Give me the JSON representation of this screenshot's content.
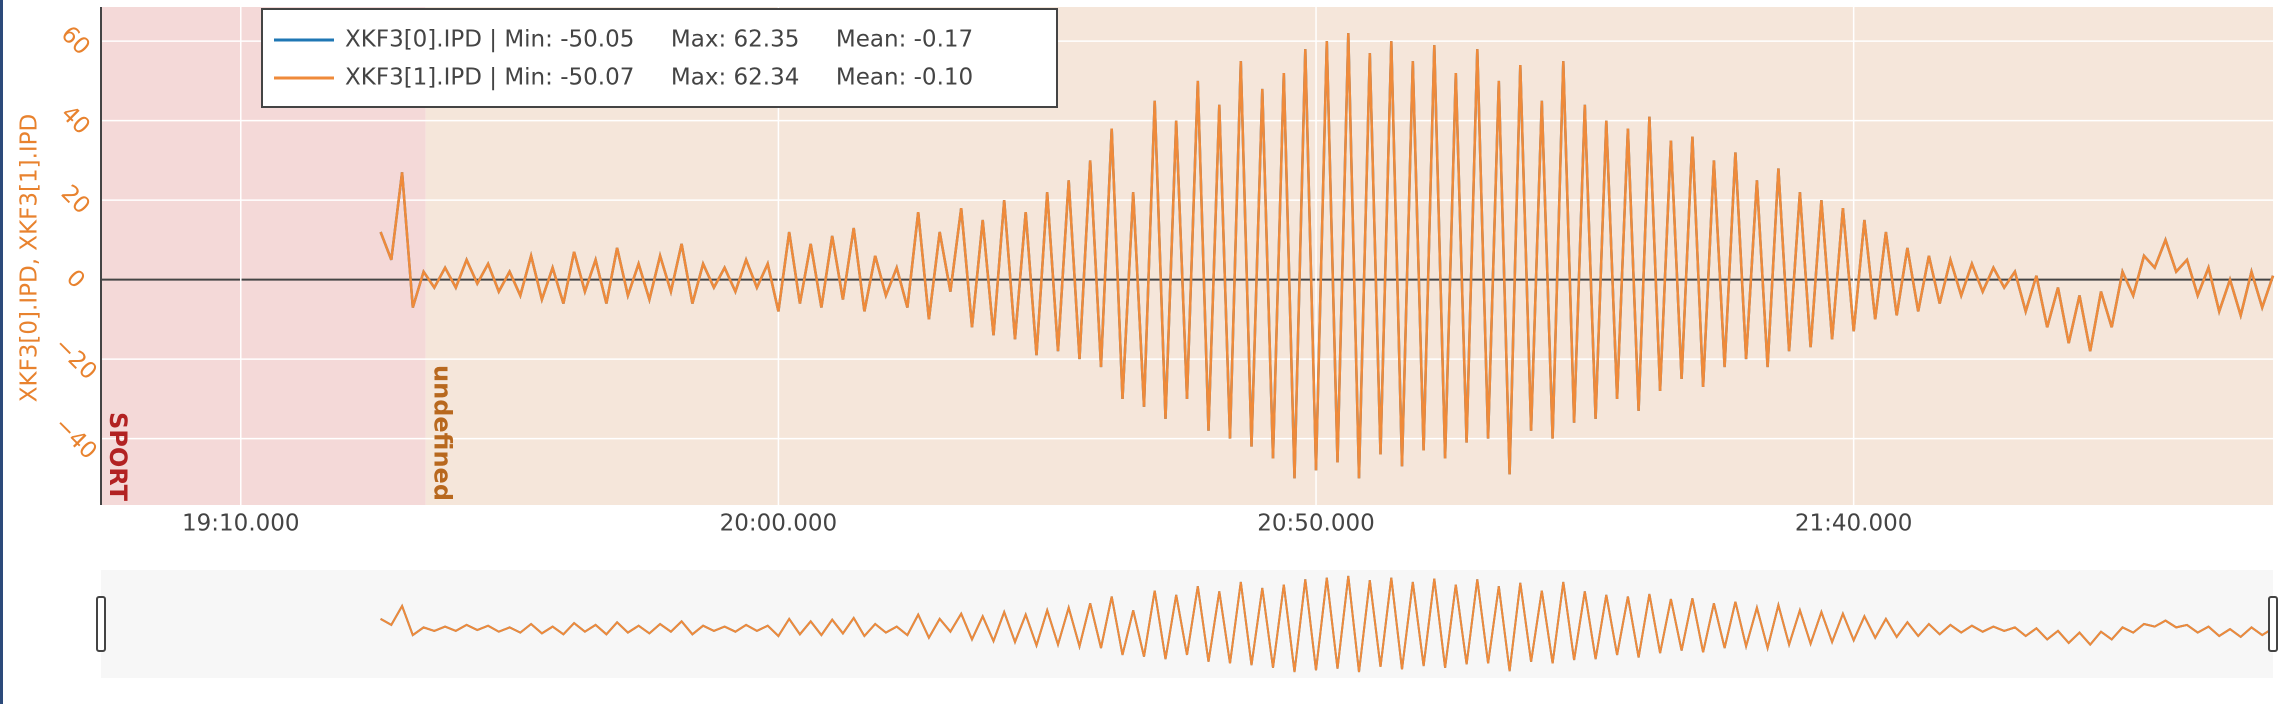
{
  "chart_data": {
    "type": "line",
    "y_label": "XKF3[0].IPD, XKF3[1].IPD",
    "xlim": [
      1137,
      1339
    ],
    "ylim": [
      -56.7,
      68.6
    ],
    "xticks": [
      {
        "value": 1150,
        "label": "19:10.000"
      },
      {
        "value": 1200,
        "label": "20:00.000"
      },
      {
        "value": 1250,
        "label": "20:50.000"
      },
      {
        "value": 1300,
        "label": "21:40.000"
      }
    ],
    "yticks": [
      {
        "value": -40,
        "label": "−40"
      },
      {
        "value": -20,
        "label": "−20"
      },
      0,
      20,
      40,
      60
    ],
    "grid": true,
    "regions": [
      {
        "label": "SPORT",
        "start": 1137,
        "end": 1167.2,
        "color": "#f4d9d8",
        "label_color": "#b22222"
      },
      {
        "label": "undefined",
        "start": 1167.2,
        "end": 1339,
        "color": "#f5e6da",
        "label_color": "#b8681e"
      }
    ],
    "x": [
      1163,
      1164,
      1165,
      1166,
      1167,
      1168,
      1169,
      1170,
      1171,
      1172,
      1173,
      1174,
      1175,
      1176,
      1177,
      1178,
      1179,
      1180,
      1181,
      1182,
      1183,
      1184,
      1185,
      1186,
      1187,
      1188,
      1189,
      1190,
      1191,
      1192,
      1193,
      1194,
      1195,
      1196,
      1197,
      1198,
      1199,
      1200,
      1201,
      1202,
      1203,
      1204,
      1205,
      1206,
      1207,
      1208,
      1209,
      1210,
      1211,
      1212,
      1213,
      1214,
      1215,
      1216,
      1217,
      1218,
      1219,
      1220,
      1221,
      1222,
      1223,
      1224,
      1225,
      1226,
      1227,
      1228,
      1229,
      1230,
      1231,
      1232,
      1233,
      1234,
      1235,
      1236,
      1237,
      1238,
      1239,
      1240,
      1241,
      1242,
      1243,
      1244,
      1245,
      1246,
      1247,
      1248,
      1249,
      1250,
      1251,
      1252,
      1253,
      1254,
      1255,
      1256,
      1257,
      1258,
      1259,
      1260,
      1261,
      1262,
      1263,
      1264,
      1265,
      1266,
      1267,
      1268,
      1269,
      1270,
      1271,
      1272,
      1273,
      1274,
      1275,
      1276,
      1277,
      1278,
      1279,
      1280,
      1281,
      1282,
      1283,
      1284,
      1285,
      1286,
      1287,
      1288,
      1289,
      1290,
      1291,
      1292,
      1293,
      1294,
      1295,
      1296,
      1297,
      1298,
      1299,
      1300,
      1301,
      1302,
      1303,
      1304,
      1305,
      1306,
      1307,
      1308,
      1309,
      1310,
      1311,
      1312,
      1313,
      1314,
      1315,
      1316,
      1317,
      1318,
      1319,
      1320,
      1321,
      1322,
      1323,
      1324,
      1325,
      1326,
      1327,
      1328,
      1329,
      1330,
      1331,
      1332,
      1333,
      1334,
      1335,
      1336,
      1337,
      1338,
      1339
    ],
    "series": [
      {
        "name": "XKF3[0].IPD | Min: -50.05     Max: 62.35     Mean: -0.17",
        "color": "#1f77b4",
        "values": [
          12,
          5,
          27,
          -7,
          2,
          -2,
          3,
          -2,
          5,
          -1,
          4,
          -3,
          2,
          -4,
          6,
          -5,
          3,
          -6,
          7,
          -3,
          5,
          -6,
          8,
          -4,
          4,
          -5,
          6,
          -3,
          9,
          -6,
          4,
          -2,
          3,
          -3,
          5,
          -2,
          4,
          -8,
          12,
          -6,
          9,
          -7,
          11,
          -5,
          13,
          -8,
          6,
          -4,
          3,
          -7,
          17,
          -10,
          12,
          -3,
          18,
          -12,
          15,
          -14,
          20,
          -15,
          17,
          -19,
          22,
          -18,
          25,
          -20,
          30,
          -22,
          38,
          -30,
          22,
          -32,
          45,
          -35,
          40,
          -30,
          50,
          -38,
          44,
          -40,
          55,
          -42,
          48,
          -45,
          52,
          -50,
          58,
          -48,
          60,
          -46,
          62,
          -50,
          57,
          -44,
          60,
          -47,
          55,
          -43,
          59,
          -45,
          52,
          -41,
          58,
          -40,
          50,
          -49,
          54,
          -38,
          45,
          -40,
          55,
          -36,
          44,
          -35,
          40,
          -30,
          38,
          -33,
          41,
          -28,
          35,
          -25,
          36,
          -27,
          30,
          -22,
          32,
          -20,
          25,
          -22,
          28,
          -18,
          22,
          -17,
          20,
          -15,
          18,
          -13,
          15,
          -10,
          12,
          -9,
          8,
          -8,
          6,
          -6,
          5,
          -4,
          4,
          -3,
          3,
          -2,
          2,
          -8,
          1,
          -12,
          -2,
          -16,
          -4,
          -18,
          -3,
          -12,
          2,
          -4,
          6,
          3,
          10,
          2,
          5,
          -4,
          3,
          -8,
          0,
          -9,
          2,
          -7,
          1
        ]
      },
      {
        "name": "XKF3[1].IPD | Min: -50.07     Max: 62.34     Mean: -0.10",
        "color": "#ef8a3a",
        "values": [
          12,
          5,
          27,
          -7,
          2,
          -2,
          3,
          -2,
          5,
          -1,
          4,
          -3,
          2,
          -4,
          6,
          -5,
          3,
          -6,
          7,
          -3,
          5,
          -6,
          8,
          -4,
          4,
          -5,
          6,
          -3,
          9,
          -6,
          4,
          -2,
          3,
          -3,
          5,
          -2,
          4,
          -8,
          12,
          -6,
          9,
          -7,
          11,
          -5,
          13,
          -8,
          6,
          -4,
          3,
          -7,
          17,
          -10,
          12,
          -3,
          18,
          -12,
          15,
          -14,
          20,
          -15,
          17,
          -19,
          22,
          -18,
          25,
          -20,
          30,
          -22,
          38,
          -30,
          22,
          -32,
          45,
          -35,
          40,
          -30,
          50,
          -38,
          44,
          -40,
          55,
          -42,
          48,
          -45,
          52,
          -50,
          58,
          -48,
          60,
          -46,
          62,
          -50,
          57,
          -44,
          60,
          -47,
          55,
          -43,
          59,
          -45,
          52,
          -41,
          58,
          -40,
          50,
          -49,
          54,
          -38,
          45,
          -40,
          55,
          -36,
          44,
          -35,
          40,
          -30,
          38,
          -33,
          41,
          -28,
          35,
          -25,
          36,
          -27,
          30,
          -22,
          32,
          -20,
          25,
          -22,
          28,
          -18,
          22,
          -17,
          20,
          -15,
          18,
          -13,
          15,
          -10,
          12,
          -9,
          8,
          -8,
          6,
          -6,
          5,
          -4,
          4,
          -3,
          3,
          -2,
          2,
          -8,
          1,
          -12,
          -2,
          -16,
          -4,
          -18,
          -3,
          -12,
          2,
          -4,
          6,
          3,
          10,
          2,
          5,
          -4,
          3,
          -8,
          0,
          -9,
          2,
          -7,
          1
        ]
      }
    ]
  }
}
